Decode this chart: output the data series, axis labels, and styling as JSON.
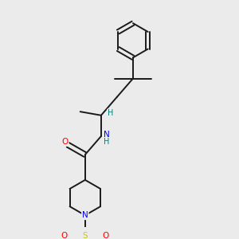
{
  "bg_color": "#ebebeb",
  "bond_color": "#1a1a1a",
  "bond_width": 1.4,
  "atom_colors": {
    "N": "#0000ff",
    "O": "#ff0000",
    "S": "#cccc00",
    "H": "#008080"
  },
  "figsize": [
    3.0,
    3.0
  ],
  "dpi": 100
}
